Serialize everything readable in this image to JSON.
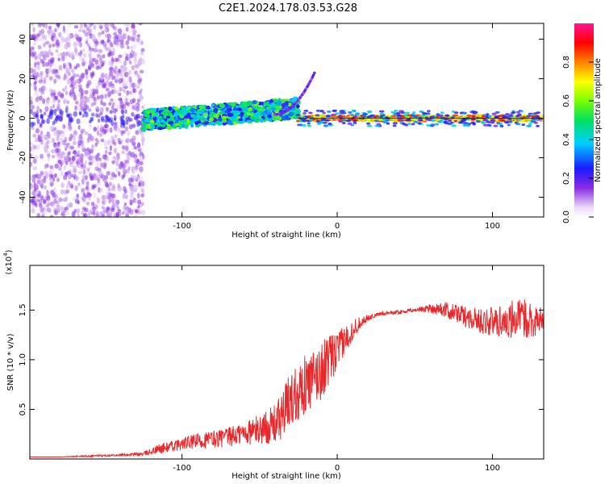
{
  "title": "C2E1.2024.178.03.53.G28",
  "chart_data": [
    {
      "type": "heatmap",
      "xlabel": "Height of straight line (km)",
      "ylabel": "Frequency (Hz)",
      "xlim": [
        -198,
        133
      ],
      "ylim": [
        -50,
        48
      ],
      "xticks": [
        -100,
        0,
        100
      ],
      "xtick_labels": [
        "-100",
        "0",
        "100"
      ],
      "yticks": [
        -40,
        -20,
        0,
        20,
        40
      ],
      "ytick_labels": [
        "-40",
        "-20",
        "0",
        "20",
        "40"
      ],
      "colorbar": {
        "label": "Normalized spectral amplitude",
        "range": [
          0,
          1
        ],
        "ticks": [
          0.0,
          0.2,
          0.4,
          0.6,
          0.8
        ],
        "tick_labels": [
          "0.0",
          "0.2",
          "0.4",
          "0.6",
          "0.8"
        ]
      },
      "description_regions": [
        {
          "x_range": [
            -198,
            -125
          ],
          "freq_range": [
            -50,
            48
          ],
          "amplitude": 0.1
        },
        {
          "x_range": [
            -125,
            -25
          ],
          "freq_range": [
            -5,
            10
          ],
          "amplitude": 0.45
        },
        {
          "x_range": [
            -25,
            133
          ],
          "freq_range": [
            -1,
            1
          ],
          "amplitude": 0.9
        }
      ]
    },
    {
      "type": "line",
      "xlabel": "Height of straight line (km)",
      "ylabel": "SNR (10 * v/v)",
      "y_multiplier_label": "(x10",
      "y_multiplier_exp": "4",
      "y_multiplier_close": ")",
      "xlim": [
        -198,
        133
      ],
      "ylim": [
        0,
        1.95
      ],
      "xticks": [
        -100,
        0,
        100
      ],
      "xtick_labels": [
        "-100",
        "0",
        "100"
      ],
      "yticks": [
        0.5,
        1.0,
        1.5
      ],
      "ytick_labels": [
        "0.5",
        "1.0",
        "1.5"
      ],
      "series": [
        {
          "color": "#e8282a",
          "x": [
            -198,
            -180,
            -160,
            -140,
            -125,
            -115,
            -100,
            -90,
            -80,
            -70,
            -60,
            -50,
            -40,
            -35,
            -30,
            -25,
            -20,
            -15,
            -10,
            -5,
            0,
            5,
            10,
            15,
            20,
            25,
            30,
            40,
            50,
            60,
            70,
            80,
            90,
            100,
            110,
            120,
            133
          ],
          "y": [
            0.02,
            0.02,
            0.03,
            0.04,
            0.05,
            0.1,
            0.15,
            0.18,
            0.2,
            0.22,
            0.26,
            0.3,
            0.35,
            0.45,
            0.6,
            0.7,
            0.75,
            0.8,
            0.9,
            1.0,
            1.08,
            1.2,
            1.3,
            1.38,
            1.42,
            1.45,
            1.47,
            1.48,
            1.5,
            1.52,
            1.5,
            1.45,
            1.4,
            1.38,
            1.4,
            1.42,
            1.38
          ],
          "noise": [
            0.0,
            0.0,
            0.01,
            0.01,
            0.02,
            0.05,
            0.06,
            0.08,
            0.09,
            0.1,
            0.12,
            0.15,
            0.2,
            0.25,
            0.3,
            0.3,
            0.3,
            0.3,
            0.3,
            0.25,
            0.2,
            0.15,
            0.1,
            0.06,
            0.03,
            0.02,
            0.02,
            0.02,
            0.02,
            0.05,
            0.08,
            0.1,
            0.12,
            0.15,
            0.2,
            0.2,
            0.15
          ]
        }
      ]
    }
  ]
}
